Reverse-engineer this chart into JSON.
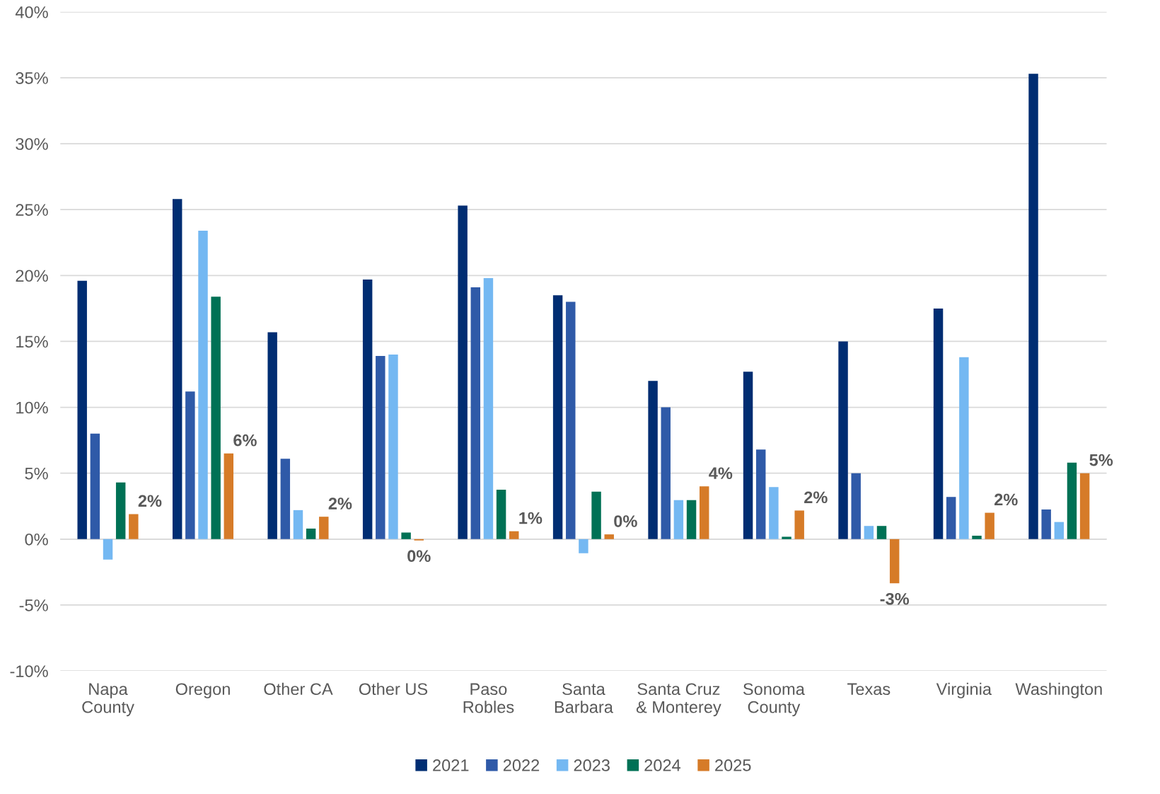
{
  "chart_data": {
    "type": "bar",
    "categories": [
      "Napa\nCounty",
      "Oregon",
      "Other CA",
      "Other US",
      "Paso\nRobles",
      "Santa\nBarbara",
      "Santa Cruz\n& Monterey",
      "Sonoma\nCounty",
      "Texas",
      "Virginia",
      "Washington"
    ],
    "series": [
      {
        "name": "2021",
        "color": "#002d72",
        "values": [
          19.6,
          25.8,
          15.7,
          19.7,
          25.3,
          18.5,
          12.0,
          12.7,
          15.0,
          17.5,
          35.3
        ]
      },
      {
        "name": "2022",
        "color": "#2f5aa8",
        "values": [
          8.0,
          11.2,
          6.1,
          13.9,
          19.1,
          18.0,
          10.0,
          6.8,
          5.0,
          3.2,
          2.25
        ]
      },
      {
        "name": "2023",
        "color": "#74b8f2",
        "values": [
          -1.55,
          23.4,
          2.2,
          14.0,
          19.8,
          -1.07,
          2.96,
          3.95,
          1.0,
          13.8,
          1.3
        ]
      },
      {
        "name": "2024",
        "color": "#007155",
        "values": [
          4.3,
          18.4,
          0.8,
          0.5,
          3.75,
          3.6,
          2.96,
          0.18,
          1.0,
          0.26,
          5.8
        ]
      },
      {
        "name": "2025",
        "color": "#d67b28",
        "values": [
          1.9,
          6.5,
          1.7,
          -0.1,
          0.6,
          0.36,
          4.0,
          2.17,
          -3.35,
          2.0,
          5.0
        ],
        "value_labels": [
          "2%",
          "6%",
          "2%",
          "0%",
          "1%",
          "0%",
          "4%",
          "2%",
          "-3%",
          "2%",
          "5%"
        ]
      }
    ],
    "ylim": [
      -10,
      40
    ],
    "yticks": [
      {
        "value": -10,
        "label": "-10%"
      },
      {
        "value": -5,
        "label": "-5%"
      },
      {
        "value": 0,
        "label": "0%"
      },
      {
        "value": 5,
        "label": "5%"
      },
      {
        "value": 10,
        "label": "10%"
      },
      {
        "value": 15,
        "label": "15%"
      },
      {
        "value": 20,
        "label": "20%"
      },
      {
        "value": 25,
        "label": "25%"
      },
      {
        "value": 30,
        "label": "30%"
      },
      {
        "value": 35,
        "label": "35%"
      },
      {
        "value": 40,
        "label": "40%"
      }
    ],
    "grid": "y",
    "legend": "bottom"
  }
}
